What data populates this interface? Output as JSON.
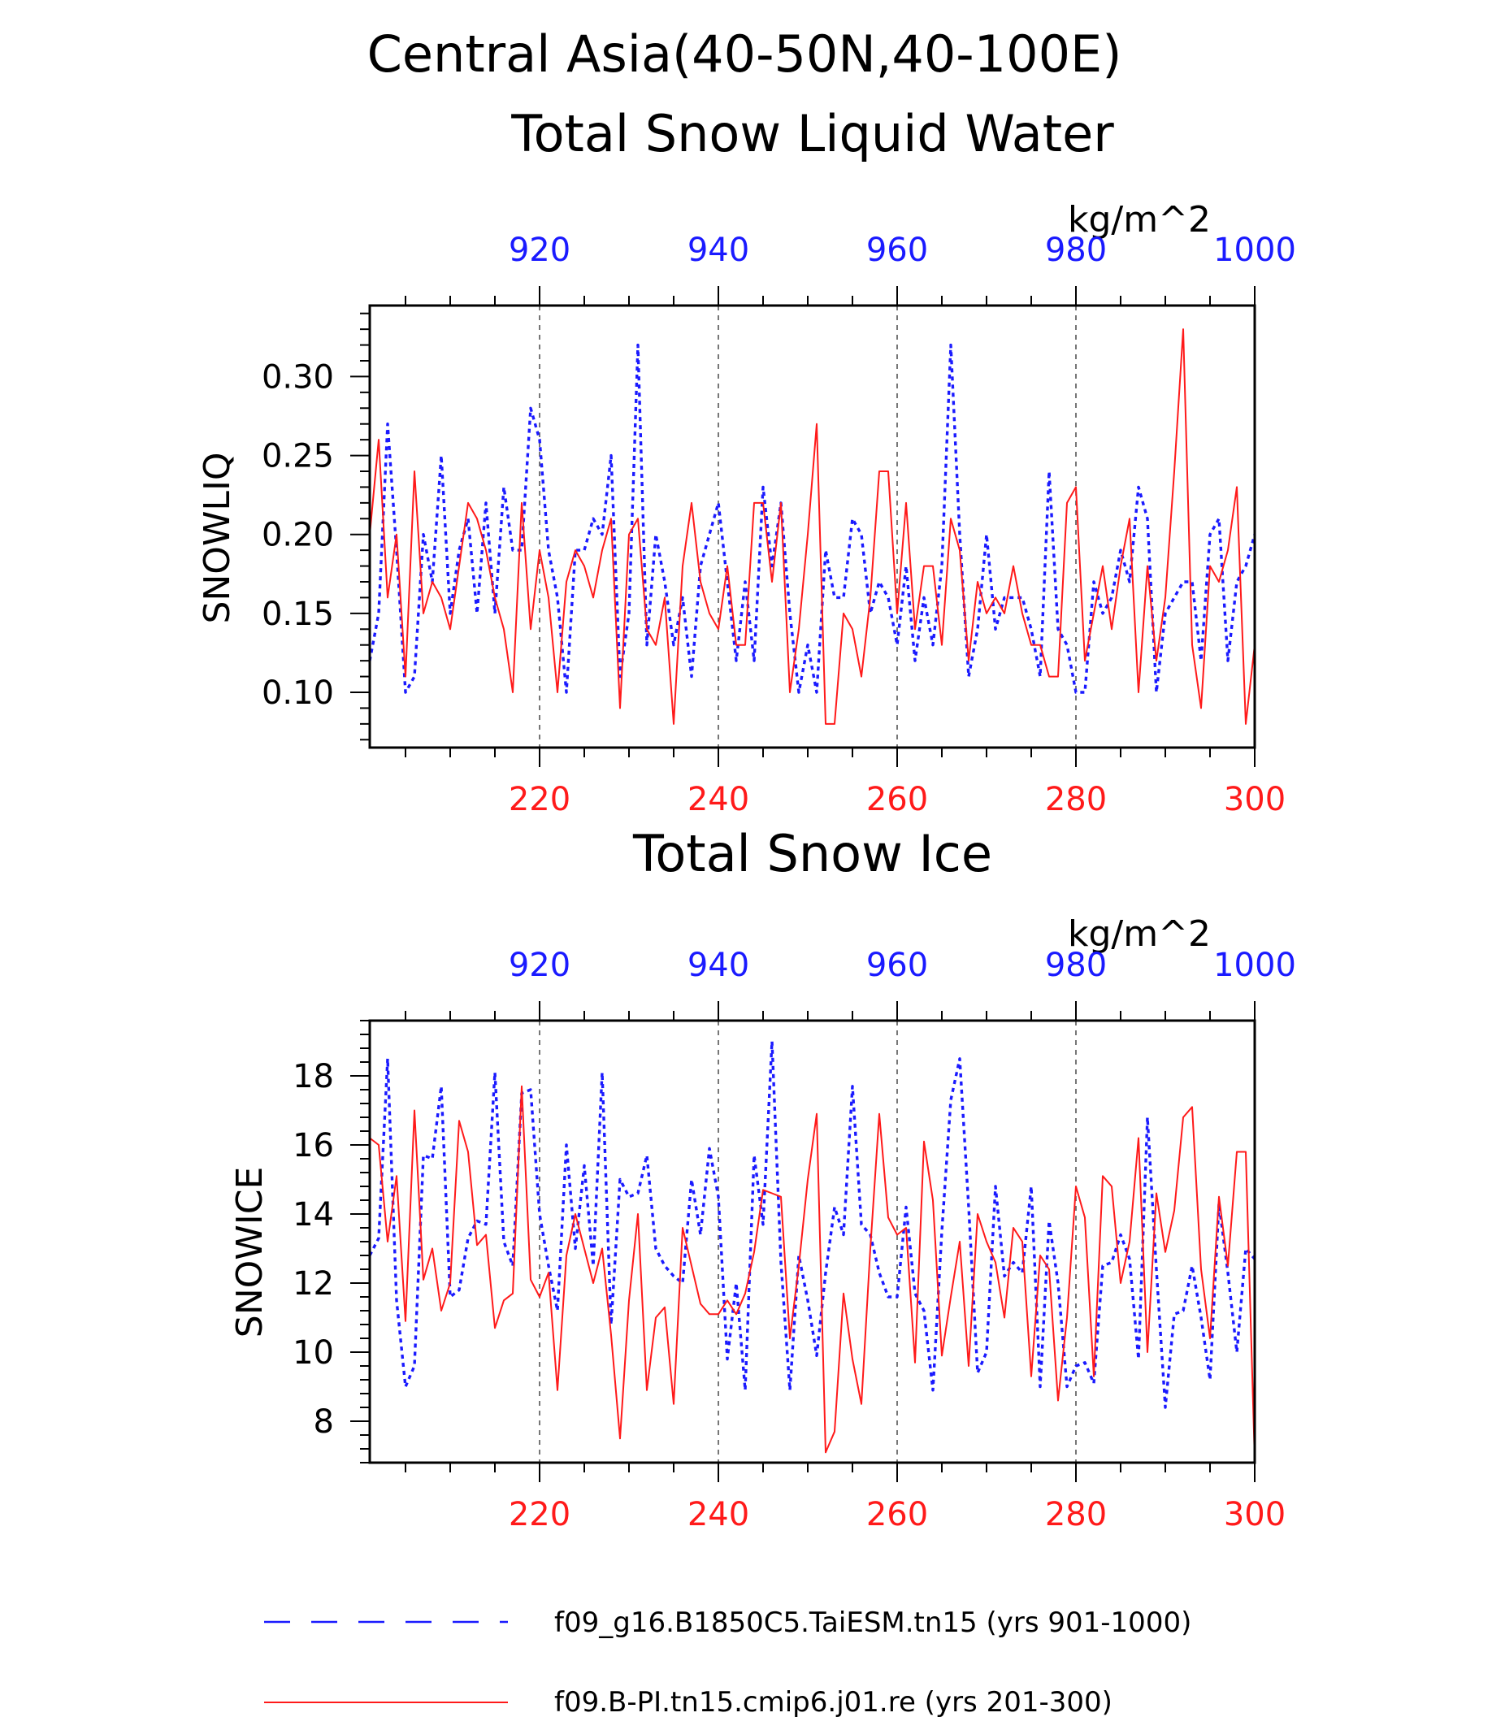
{
  "figure": {
    "title_line1": "Central Asia(40-50N,40-100E)",
    "title_line2": "Total Snow Liquid Water"
  },
  "colors": {
    "blue": "#1a1aff",
    "red": "#ff1a1a",
    "axis": "#000000",
    "grid": "#555555"
  },
  "chart_data": [
    {
      "type": "line",
      "title": "Total Snow Liquid Water",
      "ylabel": "SNOWLIQ",
      "units": "kg/m^2",
      "ylim": [
        0.065,
        0.345
      ],
      "yticks": [
        0.1,
        0.15,
        0.2,
        0.25,
        0.3
      ],
      "ytick_labels": [
        "0.10",
        "0.15",
        "0.20",
        "0.25",
        "0.30"
      ],
      "bottom_axis": {
        "range": [
          201,
          300
        ],
        "ticks": [
          220,
          240,
          260,
          280,
          300
        ],
        "color": "red"
      },
      "top_axis": {
        "range": [
          901,
          1000
        ],
        "ticks": [
          920,
          940,
          960,
          980,
          1000
        ],
        "color": "blue"
      },
      "grid": "vertical dashed at major ticks",
      "series": [
        {
          "name": "f09_g16.B1850C5.TaiESM.tn15 (yrs 901-1000)",
          "color": "blue",
          "style": "dashed",
          "x_axis": "top",
          "x": [
            901,
            902,
            903,
            904,
            905,
            906,
            907,
            908,
            909,
            910,
            911,
            912,
            913,
            914,
            915,
            916,
            917,
            918,
            919,
            920,
            921,
            922,
            923,
            924,
            925,
            926,
            927,
            928,
            929,
            930,
            931,
            932,
            933,
            934,
            935,
            936,
            937,
            938,
            939,
            940,
            941,
            942,
            943,
            944,
            945,
            946,
            947,
            948,
            949,
            950,
            951,
            952,
            953,
            954,
            955,
            956,
            957,
            958,
            959,
            960,
            961,
            962,
            963,
            964,
            965,
            966,
            967,
            968,
            969,
            970,
            971,
            972,
            973,
            974,
            975,
            976,
            977,
            978,
            979,
            980,
            981,
            982,
            983,
            984,
            985,
            986,
            987,
            988,
            989,
            990,
            991,
            992,
            993,
            994,
            995,
            996,
            997,
            998,
            999,
            1000
          ],
          "values": [
            0.12,
            0.15,
            0.27,
            0.19,
            0.1,
            0.11,
            0.2,
            0.17,
            0.25,
            0.15,
            0.19,
            0.21,
            0.15,
            0.22,
            0.15,
            0.23,
            0.19,
            0.19,
            0.28,
            0.26,
            0.19,
            0.16,
            0.1,
            0.19,
            0.19,
            0.21,
            0.2,
            0.25,
            0.11,
            0.15,
            0.32,
            0.13,
            0.2,
            0.17,
            0.13,
            0.16,
            0.11,
            0.18,
            0.2,
            0.22,
            0.17,
            0.12,
            0.17,
            0.12,
            0.23,
            0.18,
            0.22,
            0.15,
            0.1,
            0.13,
            0.1,
            0.19,
            0.16,
            0.16,
            0.21,
            0.2,
            0.15,
            0.17,
            0.16,
            0.13,
            0.18,
            0.12,
            0.16,
            0.13,
            0.18,
            0.32,
            0.2,
            0.11,
            0.14,
            0.2,
            0.14,
            0.16,
            0.16,
            0.16,
            0.14,
            0.11,
            0.24,
            0.14,
            0.13,
            0.1,
            0.1,
            0.17,
            0.15,
            0.16,
            0.19,
            0.17,
            0.23,
            0.21,
            0.1,
            0.15,
            0.16,
            0.17,
            0.17,
            0.12,
            0.2,
            0.21,
            0.12,
            0.17,
            0.18,
            0.2
          ]
        },
        {
          "name": "f09.B-PI.tn15.cmip6.j01.re (yrs 201-300)",
          "color": "red",
          "style": "solid",
          "x_axis": "bottom",
          "x": [
            201,
            202,
            203,
            204,
            205,
            206,
            207,
            208,
            209,
            210,
            211,
            212,
            213,
            214,
            215,
            216,
            217,
            218,
            219,
            220,
            221,
            222,
            223,
            224,
            225,
            226,
            227,
            228,
            229,
            230,
            231,
            232,
            233,
            234,
            235,
            236,
            237,
            238,
            239,
            240,
            241,
            242,
            243,
            244,
            245,
            246,
            247,
            248,
            249,
            250,
            251,
            252,
            253,
            254,
            255,
            256,
            257,
            258,
            259,
            260,
            261,
            262,
            263,
            264,
            265,
            266,
            267,
            268,
            269,
            270,
            271,
            272,
            273,
            274,
            275,
            276,
            277,
            278,
            279,
            280,
            281,
            282,
            283,
            284,
            285,
            286,
            287,
            288,
            289,
            290,
            291,
            292,
            293,
            294,
            295,
            296,
            297,
            298,
            299,
            300
          ],
          "values": [
            0.2,
            0.26,
            0.16,
            0.2,
            0.11,
            0.24,
            0.15,
            0.17,
            0.16,
            0.14,
            0.18,
            0.22,
            0.21,
            0.19,
            0.16,
            0.14,
            0.1,
            0.22,
            0.14,
            0.19,
            0.16,
            0.1,
            0.17,
            0.19,
            0.18,
            0.16,
            0.19,
            0.21,
            0.09,
            0.2,
            0.21,
            0.14,
            0.13,
            0.16,
            0.08,
            0.18,
            0.22,
            0.17,
            0.15,
            0.14,
            0.18,
            0.13,
            0.13,
            0.22,
            0.22,
            0.17,
            0.22,
            0.1,
            0.14,
            0.2,
            0.27,
            0.08,
            0.08,
            0.15,
            0.14,
            0.11,
            0.16,
            0.24,
            0.24,
            0.15,
            0.22,
            0.14,
            0.18,
            0.18,
            0.13,
            0.21,
            0.19,
            0.12,
            0.17,
            0.15,
            0.16,
            0.15,
            0.18,
            0.15,
            0.13,
            0.13,
            0.11,
            0.11,
            0.22,
            0.23,
            0.12,
            0.15,
            0.18,
            0.14,
            0.18,
            0.21,
            0.1,
            0.18,
            0.12,
            0.16,
            0.24,
            0.33,
            0.13,
            0.09,
            0.18,
            0.17,
            0.19,
            0.23,
            0.08,
            0.13
          ]
        }
      ]
    },
    {
      "type": "line",
      "title": "Total Snow Ice",
      "ylabel": "SNOWICE",
      "units": "kg/m^2",
      "ylim": [
        6.8,
        19.6
      ],
      "yticks": [
        8,
        10,
        12,
        14,
        16,
        18
      ],
      "ytick_labels": [
        "8",
        "10",
        "12",
        "14",
        "16",
        "18"
      ],
      "bottom_axis": {
        "range": [
          201,
          300
        ],
        "ticks": [
          220,
          240,
          260,
          280,
          300
        ],
        "color": "red"
      },
      "top_axis": {
        "range": [
          901,
          1000
        ],
        "ticks": [
          920,
          940,
          960,
          980,
          1000
        ],
        "color": "blue"
      },
      "grid": "vertical dashed at major ticks",
      "series": [
        {
          "name": "f09_g16.B1850C5.TaiESM.tn15 (yrs 901-1000)",
          "color": "blue",
          "style": "dashed",
          "x_axis": "top",
          "x": [
            901,
            902,
            903,
            904,
            905,
            906,
            907,
            908,
            909,
            910,
            911,
            912,
            913,
            914,
            915,
            916,
            917,
            918,
            919,
            920,
            921,
            922,
            923,
            924,
            925,
            926,
            927,
            928,
            929,
            930,
            931,
            932,
            933,
            934,
            935,
            936,
            937,
            938,
            939,
            940,
            941,
            942,
            943,
            944,
            945,
            946,
            947,
            948,
            949,
            950,
            951,
            952,
            953,
            954,
            955,
            956,
            957,
            958,
            959,
            960,
            961,
            962,
            963,
            964,
            965,
            966,
            967,
            968,
            969,
            970,
            971,
            972,
            973,
            974,
            975,
            976,
            977,
            978,
            979,
            980,
            981,
            982,
            983,
            984,
            985,
            986,
            987,
            988,
            989,
            990,
            991,
            992,
            993,
            994,
            995,
            996,
            997,
            998,
            999,
            1000
          ],
          "values": [
            12.8,
            13.3,
            18.5,
            11.5,
            9.0,
            9.6,
            15.7,
            15.6,
            17.7,
            11.6,
            11.8,
            13.3,
            13.8,
            13.7,
            18.1,
            13.2,
            12.5,
            17.5,
            17.6,
            14.0,
            12.5,
            11.2,
            16.0,
            13.0,
            15.4,
            12.5,
            18.1,
            10.8,
            15.0,
            14.5,
            14.6,
            15.7,
            13.0,
            12.5,
            12.2,
            12.0,
            15.0,
            13.4,
            15.9,
            14.5,
            9.8,
            12.0,
            8.9,
            15.7,
            13.7,
            19.0,
            12.6,
            8.9,
            12.8,
            11.5,
            9.9,
            12.3,
            14.2,
            13.4,
            17.7,
            13.7,
            13.4,
            12.3,
            11.6,
            11.6,
            14.2,
            11.7,
            11.2,
            8.9,
            13.5,
            17.3,
            18.5,
            14.2,
            9.4,
            10.0,
            14.8,
            12.2,
            12.6,
            12.3,
            14.8,
            9.0,
            13.8,
            12.0,
            9.0,
            9.6,
            9.7,
            9.1,
            12.5,
            12.6,
            13.4,
            12.7,
            9.8,
            16.8,
            12.4,
            8.4,
            11.1,
            11.2,
            12.5,
            11.0,
            9.2,
            14.3,
            12.3,
            10.0,
            13.0,
            12.7
          ]
        },
        {
          "name": "f09.B-PI.tn15.cmip6.j01.re (yrs 201-300)",
          "color": "red",
          "style": "solid",
          "x_axis": "bottom",
          "x": [
            201,
            202,
            203,
            204,
            205,
            206,
            207,
            208,
            209,
            210,
            211,
            212,
            213,
            214,
            215,
            216,
            217,
            218,
            219,
            220,
            221,
            222,
            223,
            224,
            225,
            226,
            227,
            228,
            229,
            230,
            231,
            232,
            233,
            234,
            235,
            236,
            237,
            238,
            239,
            240,
            241,
            242,
            243,
            244,
            245,
            246,
            247,
            248,
            249,
            250,
            251,
            252,
            253,
            254,
            255,
            256,
            257,
            258,
            259,
            260,
            261,
            262,
            263,
            264,
            265,
            266,
            267,
            268,
            269,
            270,
            271,
            272,
            273,
            274,
            275,
            276,
            277,
            278,
            279,
            280,
            281,
            282,
            283,
            284,
            285,
            286,
            287,
            288,
            289,
            290,
            291,
            292,
            293,
            294,
            295,
            296,
            297,
            298,
            299,
            300
          ],
          "values": [
            16.2,
            16.0,
            13.2,
            15.1,
            10.9,
            17.0,
            12.1,
            13.0,
            11.2,
            12.0,
            16.7,
            15.8,
            13.1,
            13.4,
            10.7,
            11.5,
            11.7,
            17.7,
            12.1,
            11.6,
            12.3,
            8.9,
            12.8,
            14.0,
            13.0,
            12.0,
            13.0,
            10.5,
            7.5,
            11.5,
            14.0,
            8.9,
            11.0,
            11.3,
            8.5,
            13.6,
            12.5,
            11.4,
            11.1,
            11.1,
            11.5,
            11.1,
            11.7,
            12.9,
            14.7,
            14.6,
            14.5,
            10.4,
            12.5,
            15.0,
            16.9,
            7.1,
            7.7,
            11.7,
            9.8,
            8.5,
            13.0,
            16.9,
            13.9,
            13.4,
            13.6,
            9.7,
            16.1,
            14.4,
            9.9,
            11.6,
            13.2,
            9.6,
            14.0,
            13.2,
            12.6,
            11.0,
            13.6,
            13.2,
            9.3,
            12.8,
            12.4,
            8.6,
            11.0,
            14.8,
            13.9,
            9.3,
            15.1,
            14.8,
            12.0,
            13.2,
            16.2,
            10.0,
            14.6,
            12.9,
            14.1,
            16.8,
            17.1,
            12.4,
            10.4,
            14.5,
            12.5,
            15.8,
            15.8,
            6.9
          ]
        }
      ]
    }
  ],
  "legend": [
    {
      "label": "f09_g16.B1850C5.TaiESM.tn15 (yrs 901-1000)",
      "color": "blue",
      "style": "dashed"
    },
    {
      "label": "f09.B-PI.tn15.cmip6.j01.re (yrs 201-300)",
      "color": "red",
      "style": "solid"
    }
  ]
}
